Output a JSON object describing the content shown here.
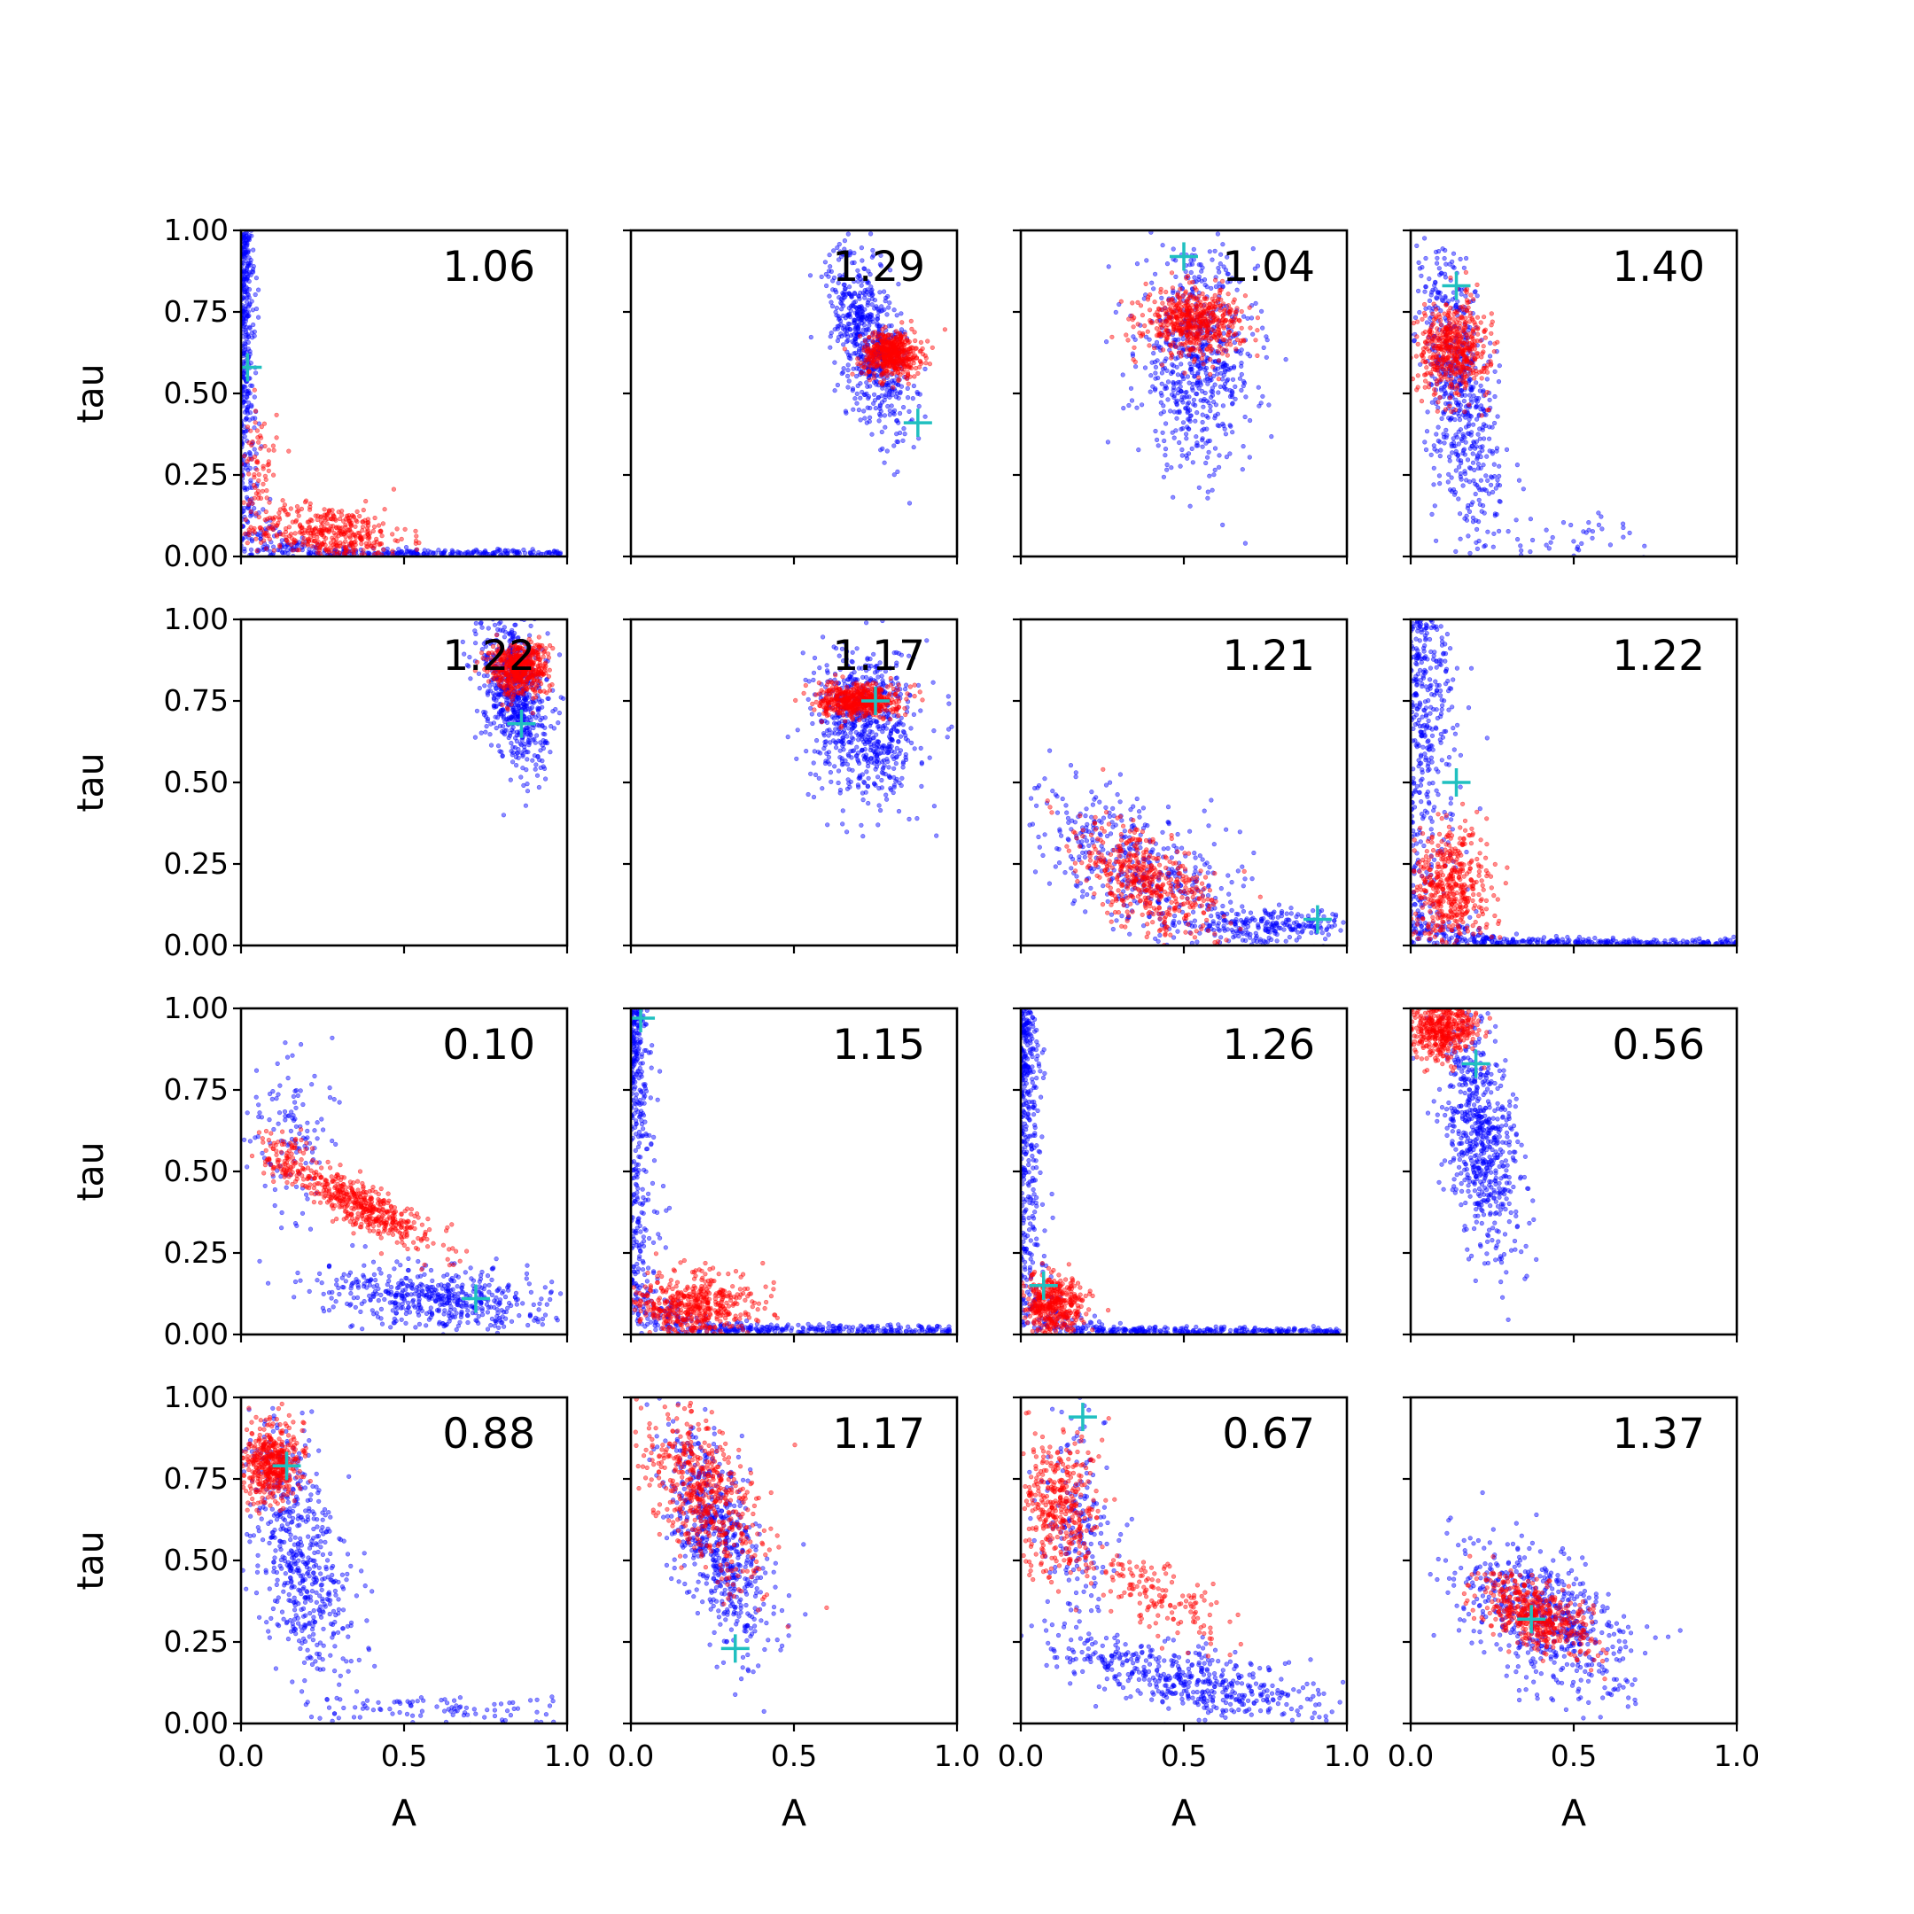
{
  "colors": {
    "series_1": "#0000ff",
    "series_2": "#ff0000",
    "marker": "#20c0c0"
  },
  "chart_data": {
    "type": "scatter",
    "grid": false,
    "layout": "4x4 grid of scatter panels with shared axes",
    "xlabel": "A",
    "ylabel": "tau",
    "xlim": [
      0,
      1
    ],
    "ylim": [
      0,
      1
    ],
    "xticks": [
      "0.0",
      "0.5",
      "1.0"
    ],
    "yticks": [
      "0.00",
      "0.25",
      "0.50",
      "0.75",
      "1.00"
    ],
    "marker_style": "+",
    "panels": [
      {
        "value": "1.06",
        "marker": [
          0.02,
          0.58
        ],
        "blue": [
          {
            "shape": "L",
            "tail_x": 0.98,
            "tail_y": 0.01,
            "stem_x": 0.025,
            "stem_top": 1.0,
            "n": 700
          }
        ],
        "red": [
          {
            "cx": 0.27,
            "cy": 0.07,
            "sx": 0.12,
            "sy": 0.045,
            "rho": -0.2,
            "n": 420
          },
          {
            "cx": 0.05,
            "cy": 0.28,
            "sx": 0.03,
            "sy": 0.1,
            "rho": 0,
            "n": 80
          }
        ]
      },
      {
        "value": "1.29",
        "marker": [
          0.88,
          0.41
        ],
        "blue": [
          {
            "cx": 0.73,
            "cy": 0.66,
            "sx": 0.06,
            "sy": 0.14,
            "rho": -0.55,
            "n": 650
          }
        ],
        "red": [
          {
            "cx": 0.8,
            "cy": 0.62,
            "sx": 0.045,
            "sy": 0.035,
            "rho": 0,
            "n": 480
          }
        ]
      },
      {
        "value": "1.04",
        "marker": [
          0.5,
          0.92
        ],
        "blue": [
          {
            "cx": 0.54,
            "cy": 0.6,
            "sx": 0.09,
            "sy": 0.16,
            "rho": -0.05,
            "n": 650
          }
        ],
        "red": [
          {
            "cx": 0.53,
            "cy": 0.72,
            "sx": 0.075,
            "sy": 0.05,
            "rho": 0,
            "n": 520
          }
        ]
      },
      {
        "value": "1.40",
        "marker": [
          0.14,
          0.83
        ],
        "blue": [
          {
            "cx": 0.15,
            "cy": 0.5,
            "sx": 0.06,
            "sy": 0.22,
            "rho": -0.5,
            "n": 600
          },
          {
            "cx": 0.45,
            "cy": 0.06,
            "sx": 0.14,
            "sy": 0.04,
            "rho": 0,
            "n": 50
          }
        ],
        "red": [
          {
            "cx": 0.13,
            "cy": 0.64,
            "sx": 0.055,
            "sy": 0.07,
            "rho": 0,
            "n": 480
          }
        ]
      },
      {
        "value": "1.22",
        "marker": [
          0.86,
          0.68
        ],
        "blue": [
          {
            "cx": 0.84,
            "cy": 0.78,
            "sx": 0.05,
            "sy": 0.12,
            "rho": -0.3,
            "n": 650
          }
        ],
        "red": [
          {
            "cx": 0.85,
            "cy": 0.85,
            "sx": 0.045,
            "sy": 0.04,
            "rho": 0,
            "n": 520
          }
        ]
      },
      {
        "value": "1.17",
        "marker": [
          0.75,
          0.75
        ],
        "blue": [
          {
            "cx": 0.72,
            "cy": 0.68,
            "sx": 0.08,
            "sy": 0.12,
            "rho": 0,
            "n": 650
          }
        ],
        "red": [
          {
            "cx": 0.7,
            "cy": 0.75,
            "sx": 0.06,
            "sy": 0.025,
            "rho": 0,
            "n": 520
          }
        ]
      },
      {
        "value": "1.21",
        "marker": [
          0.91,
          0.08
        ],
        "blue": [
          {
            "cx": 0.4,
            "cy": 0.22,
            "sx": 0.2,
            "sy": 0.14,
            "rho": -0.7,
            "n": 500
          },
          {
            "cx": 0.8,
            "cy": 0.06,
            "sx": 0.12,
            "sy": 0.025,
            "rho": 0,
            "n": 200
          }
        ],
        "red": [
          {
            "cx": 0.38,
            "cy": 0.2,
            "sx": 0.11,
            "sy": 0.09,
            "rho": -0.6,
            "n": 460
          }
        ]
      },
      {
        "value": "1.22",
        "marker": [
          0.14,
          0.5
        ],
        "blue": [
          {
            "shape": "L",
            "tail_x": 1.0,
            "tail_y": 0.01,
            "stem_x": 0.09,
            "stem_top": 1.0,
            "n": 720
          }
        ],
        "red": [
          {
            "cx": 0.12,
            "cy": 0.17,
            "sx": 0.06,
            "sy": 0.1,
            "rho": 0,
            "n": 480
          }
        ]
      },
      {
        "value": "0.10",
        "marker": [
          0.72,
          0.11
        ],
        "blue": [
          {
            "cx": 0.62,
            "cy": 0.11,
            "sx": 0.18,
            "sy": 0.05,
            "rho": -0.3,
            "n": 520
          },
          {
            "cx": 0.15,
            "cy": 0.62,
            "sx": 0.06,
            "sy": 0.13,
            "rho": 0,
            "n": 120
          }
        ],
        "red": [
          {
            "cx": 0.38,
            "cy": 0.39,
            "sx": 0.11,
            "sy": 0.065,
            "rho": -0.85,
            "n": 460
          },
          {
            "cx": 0.13,
            "cy": 0.54,
            "sx": 0.04,
            "sy": 0.04,
            "rho": 0,
            "n": 90
          }
        ]
      },
      {
        "value": "1.15",
        "marker": [
          0.03,
          0.97
        ],
        "blue": [
          {
            "shape": "L",
            "tail_x": 0.98,
            "tail_y": 0.02,
            "stem_x": 0.04,
            "stem_top": 1.0,
            "n": 700
          }
        ],
        "red": [
          {
            "cx": 0.19,
            "cy": 0.09,
            "sx": 0.1,
            "sy": 0.05,
            "rho": 0,
            "n": 500
          }
        ]
      },
      {
        "value": "1.26",
        "marker": [
          0.07,
          0.15
        ],
        "blue": [
          {
            "shape": "L",
            "tail_x": 0.98,
            "tail_y": 0.01,
            "stem_x": 0.035,
            "stem_top": 1.0,
            "n": 720
          }
        ],
        "red": [
          {
            "cx": 0.1,
            "cy": 0.09,
            "sx": 0.05,
            "sy": 0.05,
            "rho": 0,
            "n": 420
          }
        ]
      },
      {
        "value": "0.56",
        "marker": [
          0.2,
          0.83
        ],
        "blue": [
          {
            "cx": 0.22,
            "cy": 0.6,
            "sx": 0.06,
            "sy": 0.17,
            "rho": -0.3,
            "n": 650
          }
        ],
        "red": [
          {
            "cx": 0.09,
            "cy": 0.94,
            "sx": 0.055,
            "sy": 0.045,
            "rho": 0,
            "n": 480
          }
        ]
      },
      {
        "value": "0.88",
        "marker": [
          0.14,
          0.79
        ],
        "blue": [
          {
            "cx": 0.18,
            "cy": 0.52,
            "sx": 0.08,
            "sy": 0.2,
            "rho": -0.5,
            "n": 560
          },
          {
            "cx": 0.6,
            "cy": 0.04,
            "sx": 0.22,
            "sy": 0.025,
            "rho": 0,
            "n": 90
          }
        ],
        "red": [
          {
            "cx": 0.1,
            "cy": 0.8,
            "sx": 0.045,
            "sy": 0.06,
            "rho": 0,
            "n": 440
          }
        ]
      },
      {
        "value": "1.17",
        "marker": [
          0.32,
          0.23
        ],
        "blue": [
          {
            "cx": 0.26,
            "cy": 0.57,
            "sx": 0.08,
            "sy": 0.17,
            "rho": -0.6,
            "n": 620
          }
        ],
        "red": [
          {
            "cx": 0.22,
            "cy": 0.7,
            "sx": 0.09,
            "sy": 0.13,
            "rho": -0.5,
            "n": 520
          }
        ]
      },
      {
        "value": "0.67",
        "marker": [
          0.19,
          0.94
        ],
        "blue": [
          {
            "cx": 0.5,
            "cy": 0.14,
            "sx": 0.22,
            "sy": 0.07,
            "rho": -0.7,
            "n": 500
          },
          {
            "cx": 0.17,
            "cy": 0.6,
            "sx": 0.06,
            "sy": 0.18,
            "rho": 0,
            "n": 180
          }
        ],
        "red": [
          {
            "cx": 0.12,
            "cy": 0.66,
            "sx": 0.06,
            "sy": 0.11,
            "rho": 0,
            "n": 380
          },
          {
            "cx": 0.44,
            "cy": 0.38,
            "sx": 0.1,
            "sy": 0.07,
            "rho": -0.6,
            "n": 150
          }
        ]
      },
      {
        "value": "1.37",
        "marker": [
          0.37,
          0.32
        ],
        "blue": [
          {
            "cx": 0.4,
            "cy": 0.32,
            "sx": 0.13,
            "sy": 0.12,
            "rho": -0.55,
            "n": 600
          }
        ],
        "red": [
          {
            "cx": 0.38,
            "cy": 0.33,
            "sx": 0.085,
            "sy": 0.065,
            "rho": -0.55,
            "n": 480
          }
        ]
      }
    ]
  }
}
